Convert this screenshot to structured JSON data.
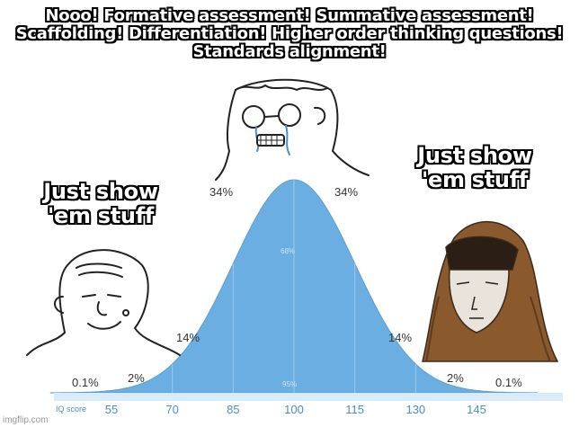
{
  "captions": {
    "top": "Nooo! Formative assessment! Summative assessment! Scaffolding! Differentiation! Higher order thinking questions! Standards alignment!",
    "left": "Just show 'em stuff",
    "right": "Just show 'em stuff"
  },
  "chart_data": {
    "type": "area",
    "title": "",
    "xlabel": "IQ score",
    "ylabel": "",
    "x_ticks": [
      55,
      70,
      85,
      100,
      115,
      130,
      145
    ],
    "percentages": {
      "left_tail": "0.1%",
      "left_2": "2%",
      "left_14": "14%",
      "left_34": "34%",
      "right_34": "34%",
      "right_14": "14%",
      "right_2": "2%",
      "right_tail": "0.1%",
      "center_68": "68%",
      "center_95": "95%"
    },
    "colors": {
      "curve_fill": "#6aaee2",
      "axis_bar": "#d9ebf8"
    }
  },
  "watermark": "imgflip.com",
  "figures": {
    "left": "smiling-wojak-icon",
    "middle": "crying-wojak-icon",
    "right": "hooded-monk-icon"
  }
}
